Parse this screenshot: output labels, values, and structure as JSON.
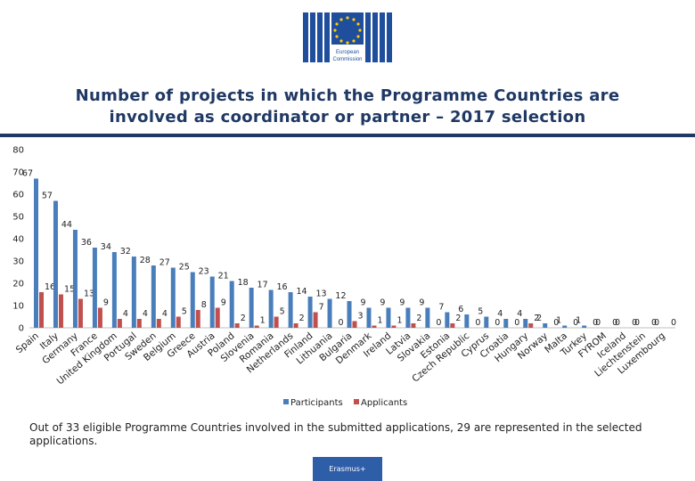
{
  "header": {
    "logo_text_line1": "European",
    "logo_text_line2": "Commission"
  },
  "title_line1": "Number of projects in which the Programme Countries are",
  "title_line2": "involved as coordinator or partner – 2017 selection",
  "footnote": "Out of 33 eligible Programme Countries involved in the submitted applications, 29 are represented in the selected applications.",
  "footer_badge": "Erasmus+",
  "colors": {
    "participants": "#4a7ebb",
    "applicants": "#c0504d",
    "title": "#1f3864",
    "badge": "#2f5ea9"
  },
  "chart_data": {
    "type": "bar",
    "title": "",
    "xlabel": "",
    "ylabel": "",
    "ylim": [
      0,
      80
    ],
    "yticks": [
      0,
      10,
      20,
      30,
      40,
      50,
      60,
      70,
      80
    ],
    "grid": false,
    "legend_position": "bottom",
    "categories": [
      "Spain",
      "Italy",
      "Germany",
      "France",
      "United Kingdom",
      "Portugal",
      "Sweden",
      "Belgium",
      "Greece",
      "Austria",
      "Poland",
      "Slovenia",
      "Romania",
      "Netherlands",
      "Finland",
      "Lithuania",
      "Bulgaria",
      "Denmark",
      "Ireland",
      "Latvia",
      "Slovakia",
      "Estonia",
      "Czech Republic",
      "Cyprus",
      "Croatia",
      "Hungary",
      "Norway",
      "Malta",
      "Turkey",
      "FYROM",
      "Iceland",
      "Liechtenstein",
      "Luxembourg"
    ],
    "series": [
      {
        "name": "Participants",
        "values": [
          67,
          57,
          44,
          36,
          34,
          32,
          28,
          27,
          25,
          23,
          21,
          18,
          17,
          16,
          14,
          13,
          12,
          9,
          9,
          9,
          9,
          7,
          6,
          5,
          4,
          4,
          2,
          1,
          1,
          0,
          0,
          0,
          0
        ]
      },
      {
        "name": "Applicants",
        "values": [
          16,
          15,
          13,
          9,
          4,
          4,
          4,
          5,
          8,
          9,
          2,
          1,
          5,
          2,
          7,
          0,
          3,
          1,
          1,
          2,
          0,
          2,
          0,
          0,
          0,
          2,
          0,
          0,
          0,
          0,
          0,
          0,
          0
        ]
      }
    ]
  }
}
